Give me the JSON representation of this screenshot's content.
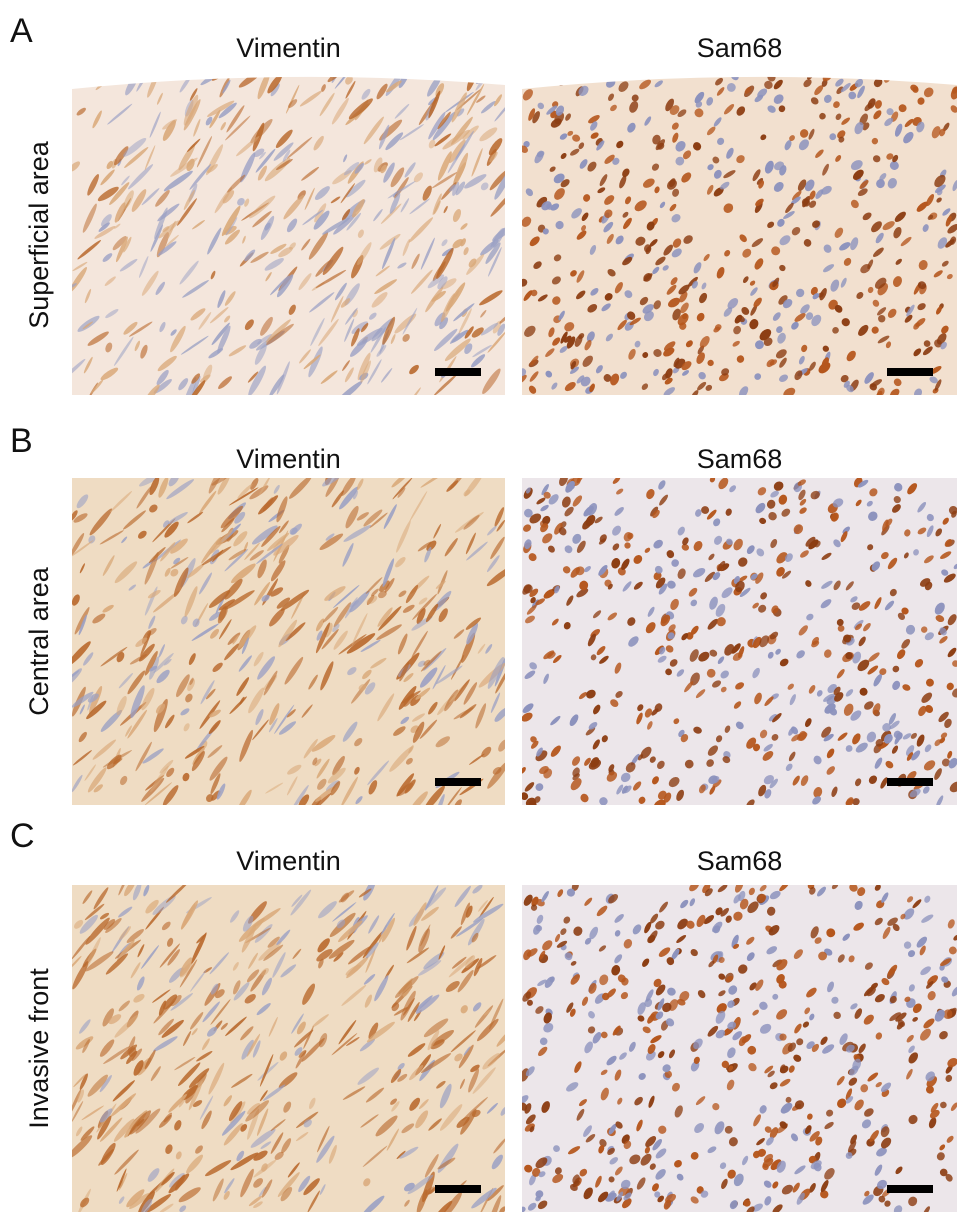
{
  "panels": [
    {
      "letter": "A",
      "row_label": "Superficial area",
      "images": [
        {
          "title": "Vimentin"
        },
        {
          "title": "Sam68"
        }
      ]
    },
    {
      "letter": "B",
      "row_label": "Central area",
      "images": [
        {
          "title": "Vimentin"
        },
        {
          "title": "Sam68"
        }
      ]
    },
    {
      "letter": "C",
      "row_label": "Invasive front",
      "images": [
        {
          "title": "Vimentin"
        },
        {
          "title": "Sam68"
        }
      ]
    }
  ]
}
